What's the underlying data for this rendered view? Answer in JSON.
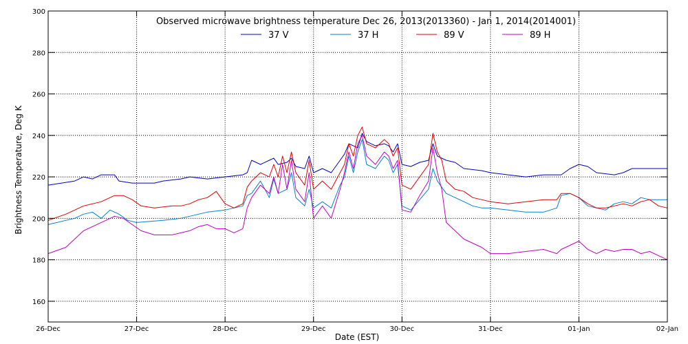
{
  "chart_data": {
    "type": "line",
    "title": "Observed microwave brightness temperature Dec 26, 2013(2013360) - Jan  1, 2014(2014001)",
    "xlabel": "Date (EST)",
    "ylabel": "Brightness Temperature, Deg K",
    "xlim": [
      0,
      7
    ],
    "ylim": [
      150,
      300
    ],
    "grid": true,
    "legend_position": "top-center",
    "x_ticks": [
      {
        "x": 0,
        "label": "26-Dec"
      },
      {
        "x": 1,
        "label": "27-Dec"
      },
      {
        "x": 2,
        "label": "28-Dec"
      },
      {
        "x": 3,
        "label": "29-Dec"
      },
      {
        "x": 4,
        "label": "30-Dec"
      },
      {
        "x": 5,
        "label": "31-Dec"
      },
      {
        "x": 6,
        "label": "01-Jan"
      },
      {
        "x": 7,
        "label": "02-Jan"
      }
    ],
    "y_ticks": [
      160,
      180,
      200,
      220,
      240,
      260,
      280,
      300
    ],
    "series": [
      {
        "name": "37 V",
        "color": "#0000c0",
        "points": [
          [
            0,
            216
          ],
          [
            0.3,
            218
          ],
          [
            0.4,
            220
          ],
          [
            0.5,
            219
          ],
          [
            0.6,
            221
          ],
          [
            0.75,
            221
          ],
          [
            0.8,
            218
          ],
          [
            0.95,
            217
          ],
          [
            1.2,
            217
          ],
          [
            1.3,
            218
          ],
          [
            1.5,
            219
          ],
          [
            1.6,
            220
          ],
          [
            1.8,
            219
          ],
          [
            2.0,
            220
          ],
          [
            2.2,
            221
          ],
          [
            2.25,
            222
          ],
          [
            2.3,
            228
          ],
          [
            2.4,
            226
          ],
          [
            2.5,
            228
          ],
          [
            2.55,
            229
          ],
          [
            2.6,
            226
          ],
          [
            2.7,
            227
          ],
          [
            2.75,
            229
          ],
          [
            2.8,
            225
          ],
          [
            2.9,
            224
          ],
          [
            2.95,
            230
          ],
          [
            3.0,
            222
          ],
          [
            3.1,
            224
          ],
          [
            3.2,
            222
          ],
          [
            3.3,
            228
          ],
          [
            3.35,
            231
          ],
          [
            3.4,
            236
          ],
          [
            3.5,
            234
          ],
          [
            3.55,
            241
          ],
          [
            3.6,
            237
          ],
          [
            3.7,
            235
          ],
          [
            3.8,
            236
          ],
          [
            3.85,
            235
          ],
          [
            3.9,
            232
          ],
          [
            3.95,
            236
          ],
          [
            4.0,
            226
          ],
          [
            4.1,
            225
          ],
          [
            4.2,
            227
          ],
          [
            4.3,
            228
          ],
          [
            4.35,
            236
          ],
          [
            4.4,
            230
          ],
          [
            4.5,
            228
          ],
          [
            4.6,
            227
          ],
          [
            4.7,
            224
          ],
          [
            4.9,
            223
          ],
          [
            5.0,
            222
          ],
          [
            5.2,
            221
          ],
          [
            5.4,
            220
          ],
          [
            5.6,
            221
          ],
          [
            5.8,
            221
          ],
          [
            5.9,
            224
          ],
          [
            6.0,
            226
          ],
          [
            6.1,
            225
          ],
          [
            6.2,
            222
          ],
          [
            6.4,
            221
          ],
          [
            6.5,
            222
          ],
          [
            6.6,
            224
          ],
          [
            6.8,
            224
          ],
          [
            7.0,
            224
          ]
        ]
      },
      {
        "name": "37 H",
        "color": "#0080d0",
        "points": [
          [
            0,
            197
          ],
          [
            0.2,
            199
          ],
          [
            0.3,
            200
          ],
          [
            0.4,
            202
          ],
          [
            0.5,
            203
          ],
          [
            0.6,
            200
          ],
          [
            0.7,
            204
          ],
          [
            0.8,
            202
          ],
          [
            0.9,
            199
          ],
          [
            1.0,
            198
          ],
          [
            1.3,
            199
          ],
          [
            1.5,
            200
          ],
          [
            1.6,
            201
          ],
          [
            1.7,
            202
          ],
          [
            1.8,
            203
          ],
          [
            2.0,
            204
          ],
          [
            2.1,
            205
          ],
          [
            2.2,
            206
          ],
          [
            2.25,
            211
          ],
          [
            2.3,
            212
          ],
          [
            2.4,
            218
          ],
          [
            2.5,
            210
          ],
          [
            2.55,
            219
          ],
          [
            2.6,
            212
          ],
          [
            2.7,
            214
          ],
          [
            2.75,
            222
          ],
          [
            2.8,
            210
          ],
          [
            2.9,
            206
          ],
          [
            2.95,
            214
          ],
          [
            3.0,
            205
          ],
          [
            3.1,
            208
          ],
          [
            3.2,
            205
          ],
          [
            3.3,
            216
          ],
          [
            3.35,
            220
          ],
          [
            3.4,
            230
          ],
          [
            3.45,
            222
          ],
          [
            3.5,
            232
          ],
          [
            3.55,
            238
          ],
          [
            3.6,
            226
          ],
          [
            3.7,
            224
          ],
          [
            3.8,
            230
          ],
          [
            3.85,
            228
          ],
          [
            3.9,
            222
          ],
          [
            3.95,
            226
          ],
          [
            4.0,
            206
          ],
          [
            4.1,
            204
          ],
          [
            4.2,
            209
          ],
          [
            4.3,
            214
          ],
          [
            4.35,
            224
          ],
          [
            4.4,
            218
          ],
          [
            4.45,
            215
          ],
          [
            4.5,
            212
          ],
          [
            4.6,
            210
          ],
          [
            4.7,
            208
          ],
          [
            4.8,
            206
          ],
          [
            4.9,
            205
          ],
          [
            5.0,
            205
          ],
          [
            5.2,
            204
          ],
          [
            5.4,
            203
          ],
          [
            5.6,
            203
          ],
          [
            5.75,
            205
          ],
          [
            5.8,
            211
          ],
          [
            5.9,
            212
          ],
          [
            6.0,
            210
          ],
          [
            6.1,
            206
          ],
          [
            6.2,
            205
          ],
          [
            6.3,
            204
          ],
          [
            6.4,
            207
          ],
          [
            6.5,
            208
          ],
          [
            6.6,
            207
          ],
          [
            6.7,
            210
          ],
          [
            6.8,
            209
          ],
          [
            7.0,
            209
          ]
        ]
      },
      {
        "name": "89 V",
        "color": "#e00000",
        "points": [
          [
            0,
            199
          ],
          [
            0.2,
            202
          ],
          [
            0.4,
            206
          ],
          [
            0.6,
            208
          ],
          [
            0.75,
            211
          ],
          [
            0.85,
            211
          ],
          [
            0.95,
            209
          ],
          [
            1.05,
            206
          ],
          [
            1.2,
            205
          ],
          [
            1.4,
            206
          ],
          [
            1.5,
            206
          ],
          [
            1.6,
            207
          ],
          [
            1.7,
            209
          ],
          [
            1.8,
            210
          ],
          [
            1.9,
            213
          ],
          [
            2.0,
            207
          ],
          [
            2.1,
            205
          ],
          [
            2.2,
            207
          ],
          [
            2.25,
            215
          ],
          [
            2.3,
            218
          ],
          [
            2.4,
            222
          ],
          [
            2.5,
            220
          ],
          [
            2.55,
            226
          ],
          [
            2.6,
            220
          ],
          [
            2.65,
            230
          ],
          [
            2.7,
            222
          ],
          [
            2.75,
            232
          ],
          [
            2.8,
            222
          ],
          [
            2.9,
            216
          ],
          [
            2.95,
            228
          ],
          [
            3.0,
            214
          ],
          [
            3.1,
            218
          ],
          [
            3.2,
            214
          ],
          [
            3.3,
            222
          ],
          [
            3.35,
            226
          ],
          [
            3.4,
            236
          ],
          [
            3.45,
            230
          ],
          [
            3.5,
            240
          ],
          [
            3.55,
            244
          ],
          [
            3.6,
            236
          ],
          [
            3.7,
            234
          ],
          [
            3.8,
            238
          ],
          [
            3.85,
            236
          ],
          [
            3.9,
            230
          ],
          [
            3.95,
            234
          ],
          [
            4.0,
            216
          ],
          [
            4.1,
            214
          ],
          [
            4.2,
            220
          ],
          [
            4.3,
            226
          ],
          [
            4.35,
            241
          ],
          [
            4.4,
            232
          ],
          [
            4.45,
            228
          ],
          [
            4.5,
            218
          ],
          [
            4.6,
            214
          ],
          [
            4.7,
            213
          ],
          [
            4.8,
            210
          ],
          [
            4.9,
            209
          ],
          [
            5.0,
            208
          ],
          [
            5.2,
            207
          ],
          [
            5.4,
            208
          ],
          [
            5.6,
            209
          ],
          [
            5.75,
            209
          ],
          [
            5.8,
            212
          ],
          [
            5.9,
            212
          ],
          [
            6.0,
            210
          ],
          [
            6.1,
            207
          ],
          [
            6.2,
            205
          ],
          [
            6.3,
            205
          ],
          [
            6.4,
            206
          ],
          [
            6.5,
            207
          ],
          [
            6.6,
            206
          ],
          [
            6.7,
            208
          ],
          [
            6.8,
            209
          ],
          [
            6.9,
            206
          ],
          [
            7.0,
            205
          ]
        ]
      },
      {
        "name": "89 H",
        "color": "#c000c0",
        "points": [
          [
            0,
            183
          ],
          [
            0.2,
            186
          ],
          [
            0.4,
            194
          ],
          [
            0.6,
            198
          ],
          [
            0.75,
            201
          ],
          [
            0.85,
            200
          ],
          [
            0.95,
            197
          ],
          [
            1.05,
            194
          ],
          [
            1.2,
            192
          ],
          [
            1.4,
            192
          ],
          [
            1.5,
            193
          ],
          [
            1.6,
            194
          ],
          [
            1.7,
            196
          ],
          [
            1.8,
            197
          ],
          [
            1.9,
            195
          ],
          [
            2.0,
            195
          ],
          [
            2.1,
            193
          ],
          [
            2.2,
            195
          ],
          [
            2.25,
            205
          ],
          [
            2.3,
            210
          ],
          [
            2.4,
            216
          ],
          [
            2.5,
            212
          ],
          [
            2.55,
            220
          ],
          [
            2.6,
            212
          ],
          [
            2.65,
            226
          ],
          [
            2.7,
            214
          ],
          [
            2.75,
            228
          ],
          [
            2.8,
            214
          ],
          [
            2.9,
            208
          ],
          [
            2.95,
            222
          ],
          [
            3.0,
            200
          ],
          [
            3.1,
            206
          ],
          [
            3.2,
            200
          ],
          [
            3.3,
            214
          ],
          [
            3.35,
            222
          ],
          [
            3.4,
            232
          ],
          [
            3.45,
            224
          ],
          [
            3.5,
            236
          ],
          [
            3.55,
            240
          ],
          [
            3.6,
            230
          ],
          [
            3.7,
            226
          ],
          [
            3.8,
            232
          ],
          [
            3.85,
            230
          ],
          [
            3.9,
            224
          ],
          [
            3.95,
            228
          ],
          [
            4.0,
            204
          ],
          [
            4.1,
            203
          ],
          [
            4.2,
            211
          ],
          [
            4.3,
            218
          ],
          [
            4.35,
            234
          ],
          [
            4.4,
            222
          ],
          [
            4.45,
            214
          ],
          [
            4.5,
            198
          ],
          [
            4.6,
            194
          ],
          [
            4.7,
            190
          ],
          [
            4.8,
            188
          ],
          [
            4.9,
            186
          ],
          [
            5.0,
            183
          ],
          [
            5.2,
            183
          ],
          [
            5.4,
            184
          ],
          [
            5.6,
            185
          ],
          [
            5.75,
            183
          ],
          [
            5.8,
            185
          ],
          [
            5.9,
            187
          ],
          [
            6.0,
            189
          ],
          [
            6.1,
            185
          ],
          [
            6.2,
            183
          ],
          [
            6.3,
            185
          ],
          [
            6.4,
            184
          ],
          [
            6.5,
            185
          ],
          [
            6.6,
            185
          ],
          [
            6.7,
            183
          ],
          [
            6.8,
            184
          ],
          [
            6.9,
            182
          ],
          [
            7.0,
            180
          ]
        ]
      }
    ]
  }
}
